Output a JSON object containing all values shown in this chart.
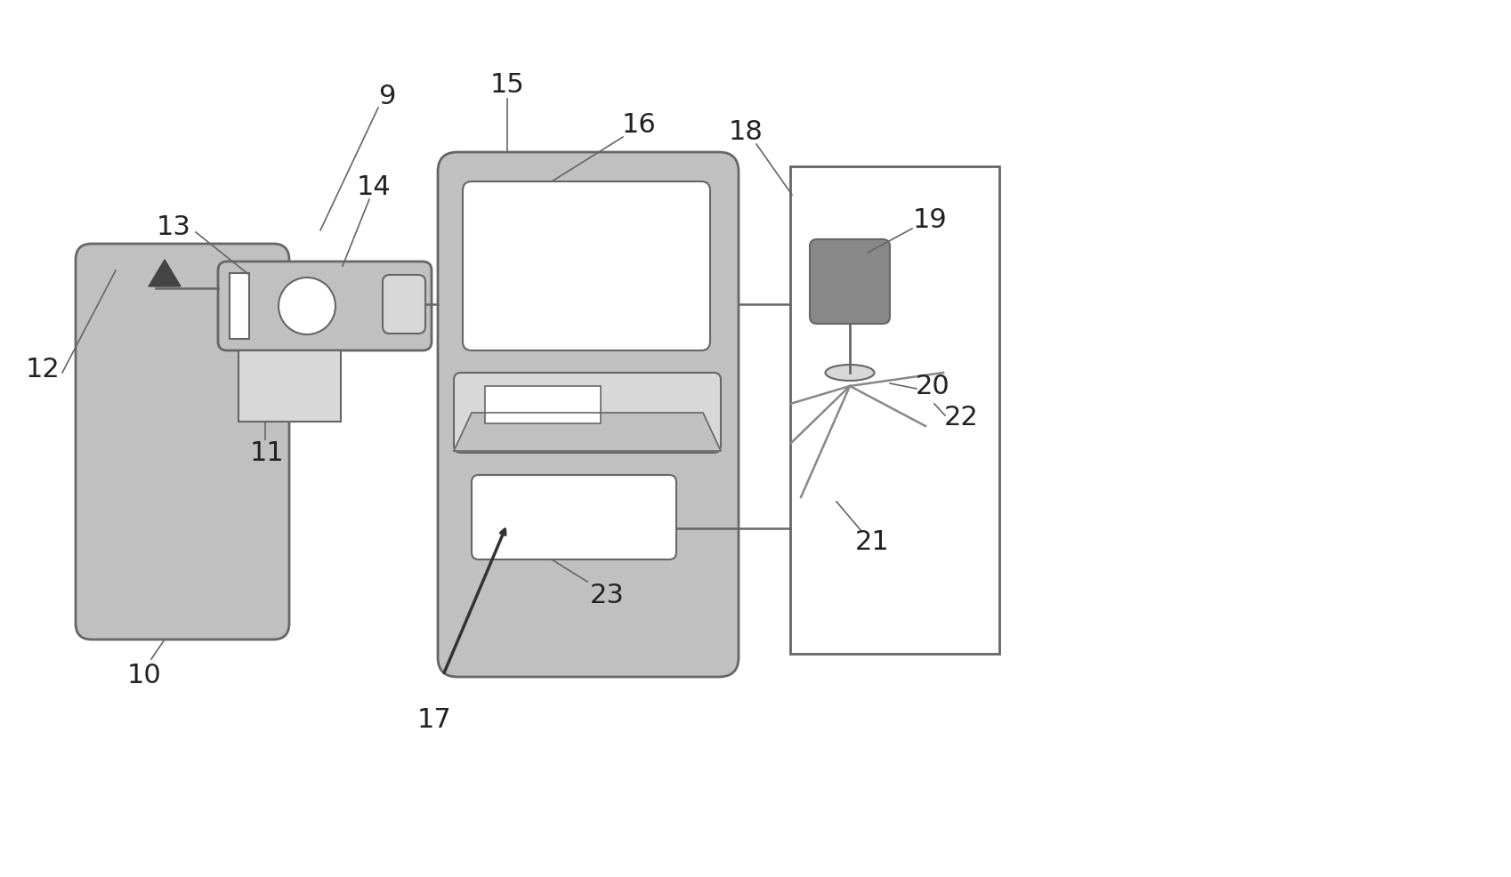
{
  "bg_color": "#ffffff",
  "gray_fill": "#c0c0c0",
  "dark_gray": "#888888",
  "light_gray": "#d8d8d8",
  "border_color": "#666666",
  "line_color": "#666666",
  "text_color": "#222222",
  "figw": 16.99,
  "figh": 9.87,
  "dpi": 100
}
